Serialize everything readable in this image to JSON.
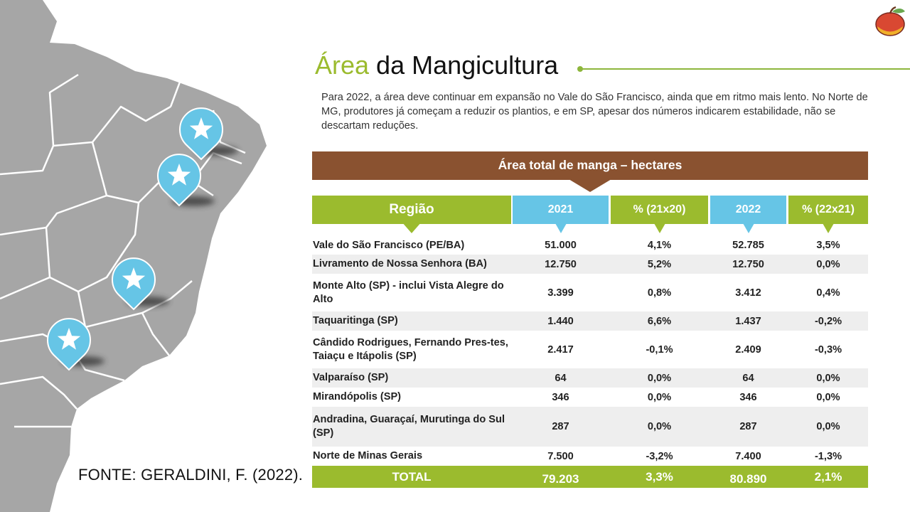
{
  "title": {
    "accent": "Área",
    "rest": " da Mangicultura"
  },
  "intro": "Para 2022, a área deve continuar em expansão no Vale do São Francisco, ainda que em ritmo mais lento. No Norte de MG, produtores já começam a reduzir os plantios, e em SP, apesar dos números indicarem estabilidade, não se descartam reduções.",
  "source": "FONTE: GERALDINI, F. (2022).",
  "table": {
    "caption": "Área total de manga – hectares",
    "headers": {
      "regiao": "Região",
      "y2021": "2021",
      "p21": "% (21x20)",
      "y2022": "2022",
      "p22": "% (22x21)"
    },
    "rows": [
      {
        "regiao": "Vale do São Francisco (PE/BA)",
        "y2021": "51.000",
        "p21": "4,1%",
        "y2022": "52.785",
        "p22": "3,5%"
      },
      {
        "regiao": "Livramento de Nossa Senhora (BA)",
        "y2021": "12.750",
        "p21": "5,2%",
        "y2022": "12.750",
        "p22": "0,0%"
      },
      {
        "regiao": "Monte Alto (SP) - inclui Vista Alegre do Alto",
        "y2021": "3.399",
        "p21": "0,8%",
        "y2022": "3.412",
        "p22": "0,4%"
      },
      {
        "regiao": "Taquaritinga (SP)",
        "y2021": "1.440",
        "p21": "6,6%",
        "y2022": "1.437",
        "p22": "-0,2%"
      },
      {
        "regiao": "Cândido Rodrigues, Fernando Pres-tes, Taiaçu e Itápolis (SP)",
        "y2021": "2.417",
        "p21": "-0,1%",
        "y2022": "2.409",
        "p22": "-0,3%"
      },
      {
        "regiao": "Valparaíso (SP)",
        "y2021": "64",
        "p21": "0,0%",
        "y2022": "64",
        "p22": "0,0%"
      },
      {
        "regiao": "Mirandópolis (SP)",
        "y2021": "346",
        "p21": "0,0%",
        "y2022": "346",
        "p22": "0,0%"
      },
      {
        "regiao": "Andradina, Guaraçaí, Murutinga do Sul (SP)",
        "y2021": "287",
        "p21": "0,0%",
        "y2022": "287",
        "p22": "0,0%"
      },
      {
        "regiao": "Norte de Minas Gerais",
        "y2021": "7.500",
        "p21": "-3,2%",
        "y2022": "7.400",
        "p22": "-1,3%"
      }
    ],
    "total": {
      "label": "TOTAL",
      "y2021": "79.203",
      "p21": "3,3%",
      "y2022": "80.890",
      "p22": "2,1%"
    }
  },
  "colors": {
    "green": "#9bbb2e",
    "blue": "#66c5e6",
    "brown": "#8a5230",
    "map_fill": "#a6a6a6",
    "marker": "#66c5e6"
  },
  "icons": {
    "logo": "mango-logo-icon",
    "marker": "star-map-marker-icon"
  }
}
